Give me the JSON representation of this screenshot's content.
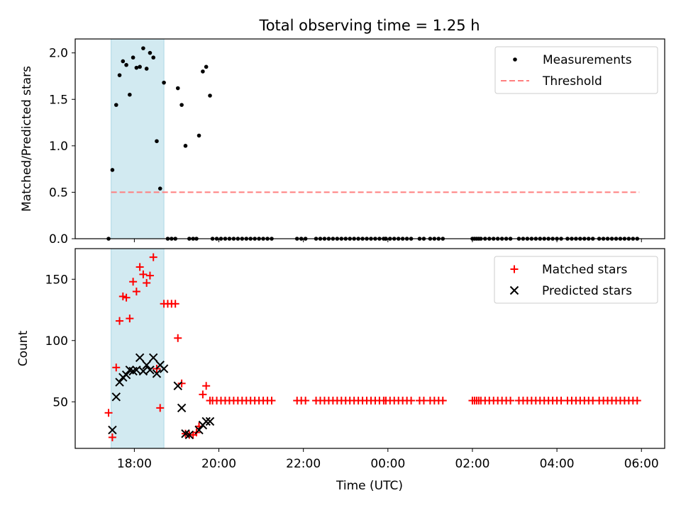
{
  "title": "Total observing time = 1.25 h",
  "colors": {
    "band": "#add8e6",
    "measurement": "#000000",
    "threshold": "#ff7f7f",
    "matched": "#ff0000",
    "predicted": "#000000"
  },
  "chart_data": [
    {
      "type": "scatter",
      "ylabel": "Matched/Predicted stars",
      "xlabel": "",
      "x_unit": "hour (UTC), past midnight continues beyond 24",
      "xlim": [
        16.6,
        30.55
      ],
      "ylim": [
        0,
        2.15
      ],
      "yticks": [
        0.0,
        0.5,
        1.0,
        1.5,
        2.0
      ],
      "ytick_labels": [
        "0.0",
        "0.5",
        "1.0",
        "1.5",
        "2.0"
      ],
      "shaded_interval": [
        17.45,
        18.7
      ],
      "threshold": {
        "y": 0.5,
        "x_range": [
          17.45,
          29.95
        ]
      },
      "legend": {
        "position": "top-right",
        "entries": [
          "Measurements",
          "Threshold"
        ]
      },
      "series": [
        {
          "name": "Measurements",
          "points": [
            [
              17.48,
              0.74
            ],
            [
              17.57,
              1.44
            ],
            [
              17.65,
              1.76
            ],
            [
              17.73,
              1.91
            ],
            [
              17.81,
              1.87
            ],
            [
              17.89,
              1.55
            ],
            [
              17.97,
              1.95
            ],
            [
              18.05,
              1.84
            ],
            [
              18.13,
              1.85
            ],
            [
              18.21,
              2.05
            ],
            [
              18.29,
              1.83
            ],
            [
              18.37,
              2.0
            ],
            [
              18.45,
              1.95
            ],
            [
              18.53,
              1.05
            ],
            [
              18.61,
              0.54
            ],
            [
              18.7,
              1.68
            ],
            [
              19.03,
              1.62
            ],
            [
              19.12,
              1.44
            ],
            [
              19.21,
              1.0
            ],
            [
              19.53,
              1.11
            ],
            [
              19.62,
              1.8
            ],
            [
              19.7,
              1.85
            ],
            [
              19.79,
              1.54
            ]
          ]
        }
      ]
    },
    {
      "type": "scatter",
      "ylabel": "Count",
      "xlabel": "Time (UTC)",
      "x_unit": "hour (UTC), past midnight continues beyond 24",
      "xlim": [
        16.6,
        30.55
      ],
      "ylim": [
        12,
        175
      ],
      "yticks": [
        50,
        100,
        150
      ],
      "ytick_labels": [
        "50",
        "100",
        "150"
      ],
      "xticks": [
        18,
        20,
        22,
        24,
        26,
        28,
        30
      ],
      "xtick_labels": [
        "18:00",
        "20:00",
        "22:00",
        "00:00",
        "02:00",
        "04:00",
        "06:00"
      ],
      "shaded_interval": [
        17.45,
        18.7
      ],
      "legend": {
        "position": "top-right",
        "entries": [
          "Matched stars",
          "Predicted stars"
        ]
      },
      "series": [
        {
          "name": "Matched stars",
          "marker": "plus",
          "points": [
            [
              17.39,
              41
            ],
            [
              17.48,
              21
            ],
            [
              17.57,
              78
            ],
            [
              17.65,
              116
            ],
            [
              17.73,
              136
            ],
            [
              17.81,
              135
            ],
            [
              17.89,
              118
            ],
            [
              17.97,
              148
            ],
            [
              18.05,
              140
            ],
            [
              18.13,
              160
            ],
            [
              18.21,
              154
            ],
            [
              18.29,
              147
            ],
            [
              18.37,
              153
            ],
            [
              18.45,
              168
            ],
            [
              18.53,
              77
            ],
            [
              18.61,
              45
            ],
            [
              18.7,
              130
            ],
            [
              18.79,
              130
            ],
            [
              18.88,
              130
            ],
            [
              18.97,
              130
            ],
            [
              19.03,
              102
            ],
            [
              19.12,
              65
            ],
            [
              19.21,
              24
            ],
            [
              19.3,
              23
            ],
            [
              19.39,
              23
            ],
            [
              19.47,
              25
            ],
            [
              19.53,
              30
            ],
            [
              19.62,
              56
            ],
            [
              19.7,
              63
            ],
            [
              19.79,
              51
            ]
          ]
        },
        {
          "name": "Predicted stars",
          "marker": "x",
          "points": [
            [
              17.48,
              27
            ],
            [
              17.57,
              54
            ],
            [
              17.65,
              66
            ],
            [
              17.73,
              70
            ],
            [
              17.81,
              72
            ],
            [
              17.89,
              76
            ],
            [
              17.97,
              75
            ],
            [
              18.05,
              76
            ],
            [
              18.13,
              86
            ],
            [
              18.21,
              75
            ],
            [
              18.29,
              80
            ],
            [
              18.37,
              76
            ],
            [
              18.45,
              86
            ],
            [
              18.53,
              73
            ],
            [
              18.61,
              80
            ],
            [
              18.7,
              77
            ],
            [
              19.03,
              63
            ],
            [
              19.12,
              45
            ],
            [
              19.21,
              24
            ],
            [
              19.3,
              23
            ],
            [
              19.53,
              27
            ],
            [
              19.62,
              31
            ],
            [
              19.7,
              34
            ],
            [
              19.79,
              34
            ]
          ]
        }
      ],
      "continuation": {
        "description": "after the listed points, zero ratio measurements and constant matched-star count until the end of the night",
        "matched_value": 51,
        "ratio_value": 0,
        "dense_ranges": [
          [
            19.85,
            21.3
          ],
          [
            22.3,
            23.9
          ],
          [
            23.95,
            24.55
          ],
          [
            25.0,
            25.35
          ],
          [
            26.0,
            26.95
          ],
          [
            27.1,
            28.1
          ],
          [
            28.25,
            28.75
          ],
          [
            29.0,
            29.95
          ]
        ],
        "single_points": [
          21.85,
          21.95,
          22.05,
          23.95,
          24.75,
          24.85,
          26.05,
          26.15,
          28.85
        ]
      }
    }
  ]
}
